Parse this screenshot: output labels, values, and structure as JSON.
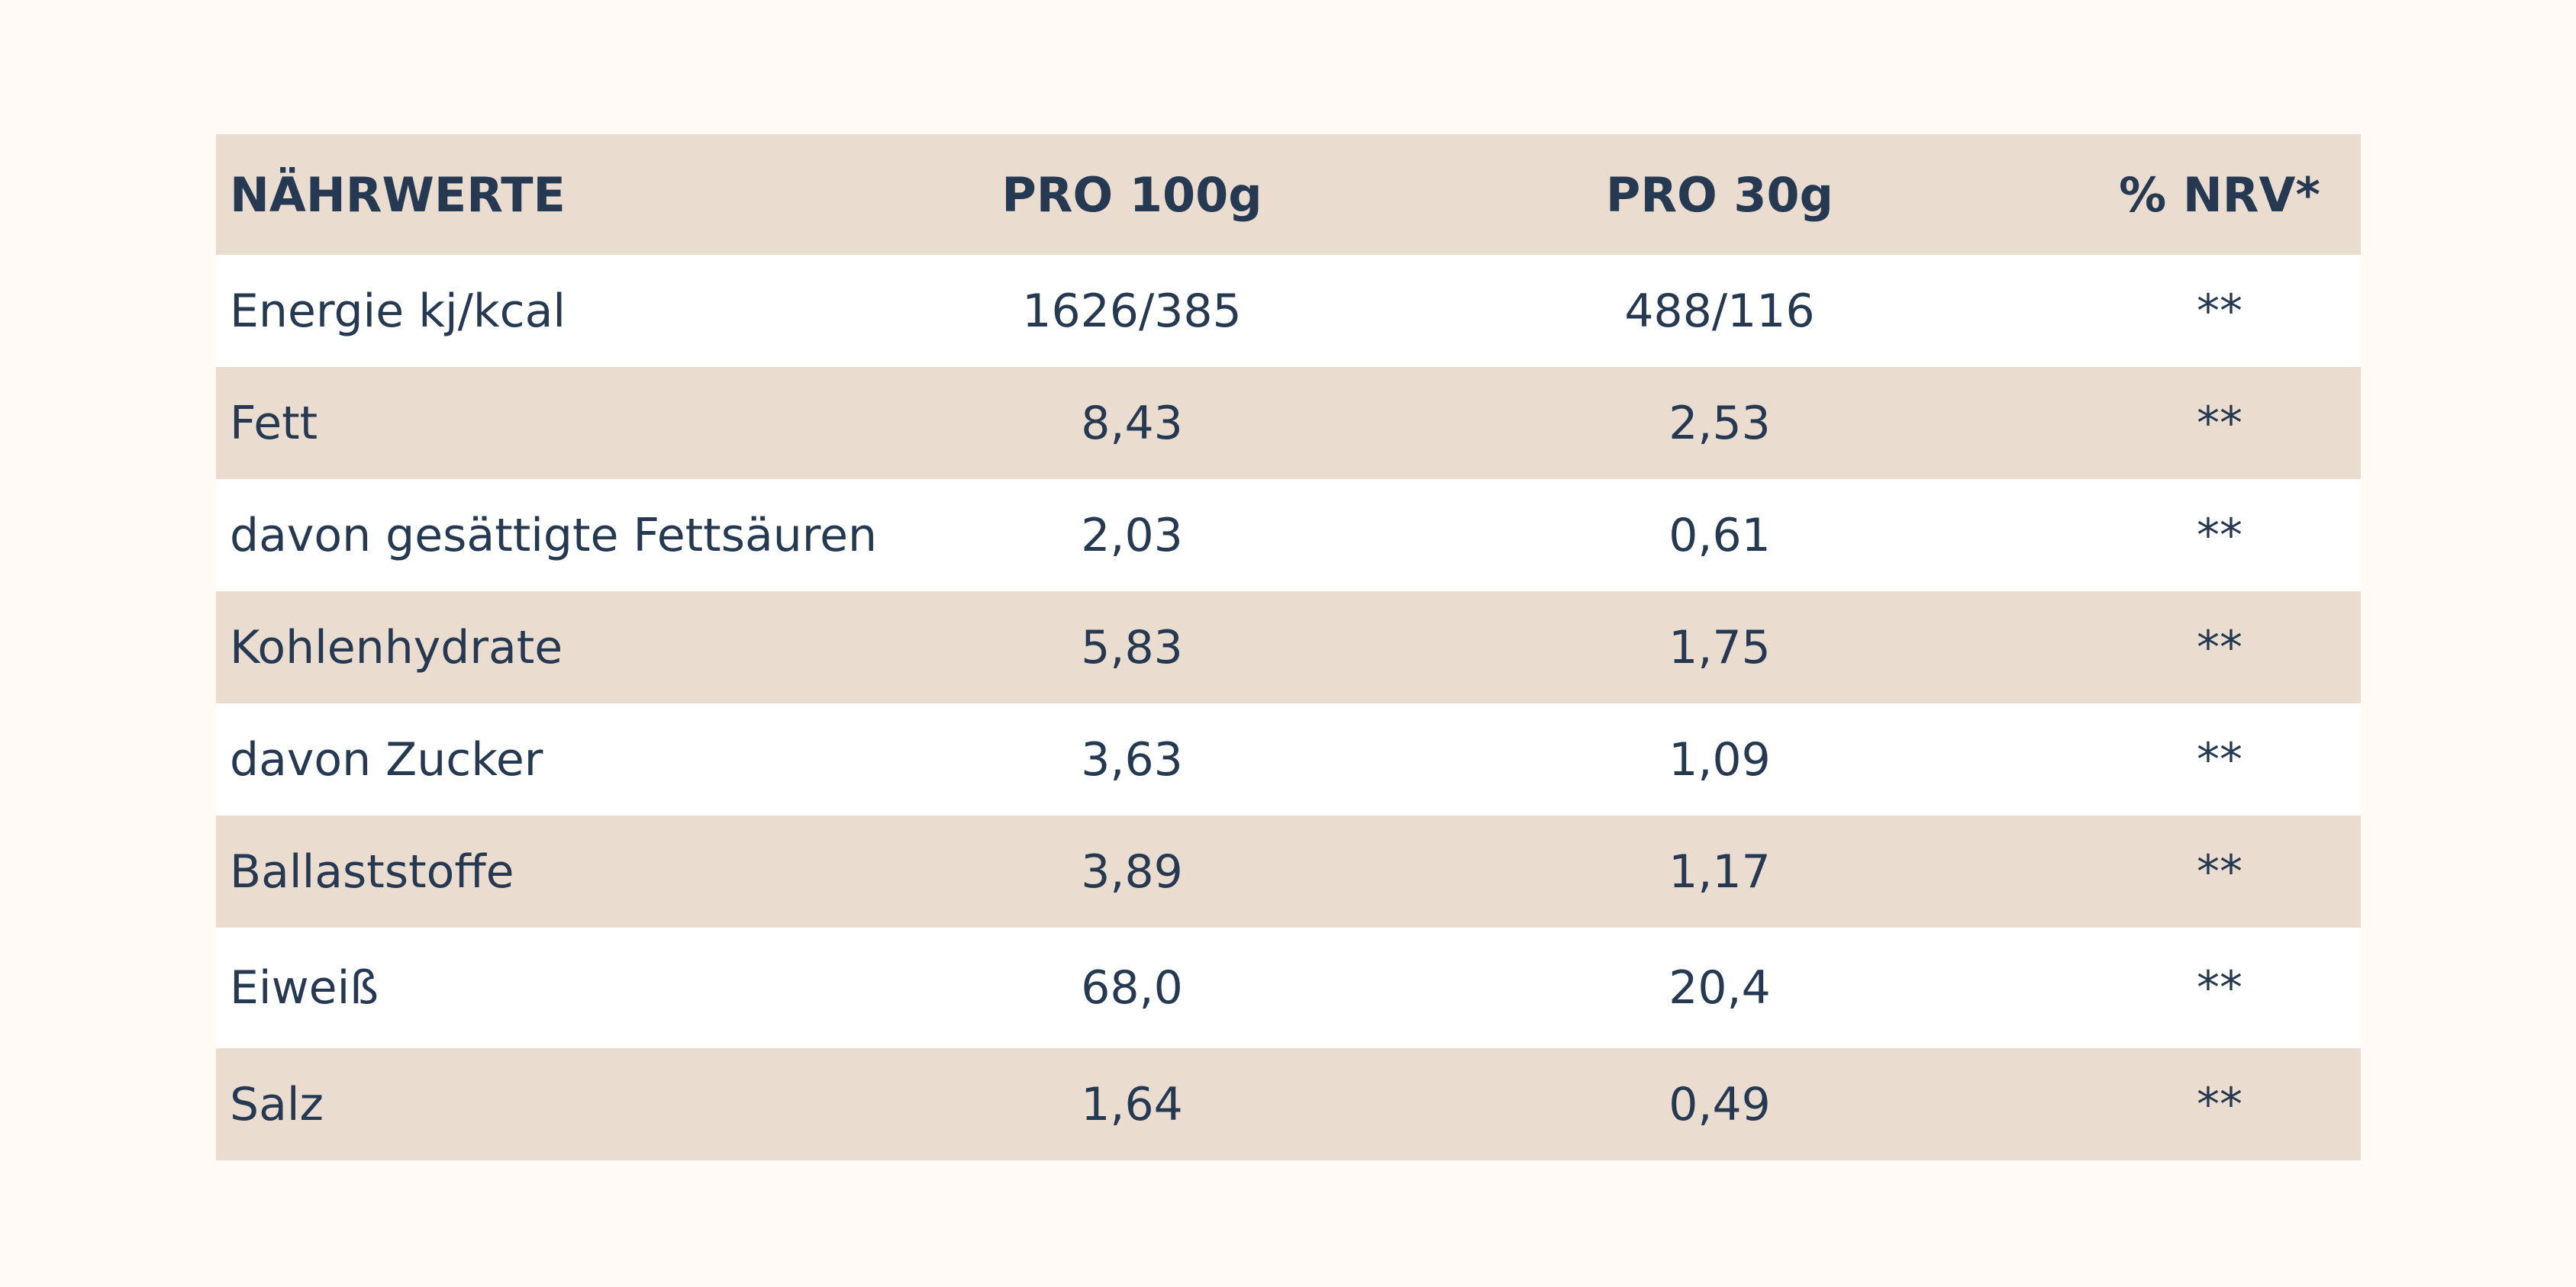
{
  "table": {
    "headers": [
      "NÄHRWERTE",
      "PRO 100g",
      "PRO 30g",
      "% NRV*"
    ],
    "rows": [
      [
        "Energie kj/kcal",
        "1626/385",
        "488/116",
        "**"
      ],
      [
        "Fett",
        "8,43",
        "2,53",
        "**"
      ],
      [
        "davon gesättigte Fettsäuren",
        "2,03",
        "0,61",
        "**"
      ],
      [
        "Kohlenhydrate",
        "5,83",
        "1,75",
        "**"
      ],
      [
        "davon Zucker",
        "3,63",
        "1,09",
        "**"
      ],
      [
        "Ballaststoffe",
        "3,89",
        "1,17",
        "**"
      ],
      [
        "Eiweiß",
        "68,0",
        "20,4",
        "**"
      ],
      [
        "Salz",
        "1,64",
        "0,49",
        "**"
      ]
    ]
  },
  "colors": {
    "band": "#eadccf",
    "text": "#253a52",
    "page": "#fffaf6"
  }
}
